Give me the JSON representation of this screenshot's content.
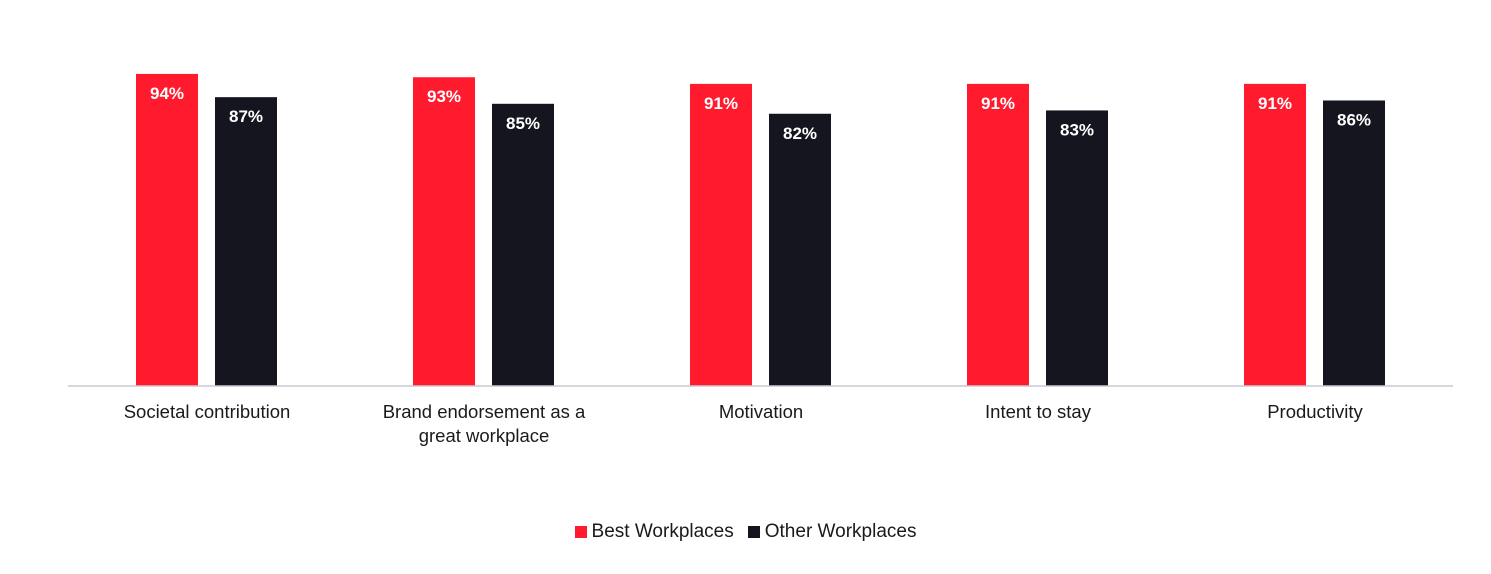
{
  "chart_data": {
    "type": "bar",
    "title": "",
    "xlabel": "",
    "ylabel": "",
    "ylim": [
      0,
      100
    ],
    "grid": false,
    "legend_position": "bottom-center",
    "categories": [
      [
        "Societal contribution"
      ],
      [
        "Brand endorsement as a",
        "great workplace"
      ],
      [
        "Motivation"
      ],
      [
        "Intent to stay"
      ],
      [
        "Productivity"
      ]
    ],
    "series": [
      {
        "name": "Best Workplaces",
        "color": "#ff1a2e",
        "values": [
          94,
          93,
          91,
          91,
          91
        ],
        "labels": [
          "94%",
          "93%",
          "91%",
          "91%",
          "91%"
        ]
      },
      {
        "name": "Other Workplaces",
        "color": "#14151f",
        "values": [
          87,
          85,
          82,
          83,
          86
        ],
        "labels": [
          "87%",
          "85%",
          "82%",
          "83%",
          "86%"
        ]
      }
    ],
    "colors": {
      "axis": "#c8c8d0",
      "value_label": "#ffffff",
      "category_label": "#1a1a1a"
    }
  }
}
